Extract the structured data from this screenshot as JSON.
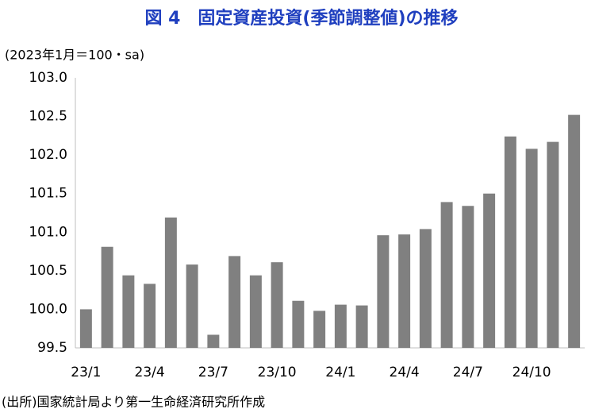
{
  "chart_data": {
    "type": "bar",
    "title": "図 4　固定資産投資(季節調整値)の推移",
    "subtitle": "(2023年1月＝100・sa)",
    "source": "(出所)国家統計局より第一生命経済研究所作成",
    "categories": [
      "23/1",
      null,
      null,
      "23/4",
      null,
      null,
      "23/7",
      null,
      null,
      "23/10",
      null,
      null,
      "24/1",
      null,
      null,
      "24/4",
      null,
      null,
      "24/7",
      null,
      null,
      "24/10",
      null,
      null
    ],
    "values": [
      100.0,
      100.81,
      100.44,
      100.33,
      101.19,
      100.58,
      99.67,
      100.69,
      100.44,
      100.61,
      100.11,
      99.98,
      100.06,
      100.05,
      100.96,
      100.97,
      101.04,
      101.39,
      101.34,
      101.5,
      102.24,
      102.08,
      102.17,
      102.52
    ],
    "color": "#808080",
    "ylim": [
      99.5,
      103.0
    ],
    "yticks": [
      {
        "value": 99.5,
        "label": "99.5"
      },
      {
        "value": 100,
        "label": "100.0"
      },
      100.5,
      {
        "value": 101,
        "label": "101.0"
      },
      101.5,
      {
        "value": 102,
        "label": "102.0"
      },
      102.5,
      {
        "value": 103,
        "label": "103.0"
      }
    ],
    "grid": false
  }
}
